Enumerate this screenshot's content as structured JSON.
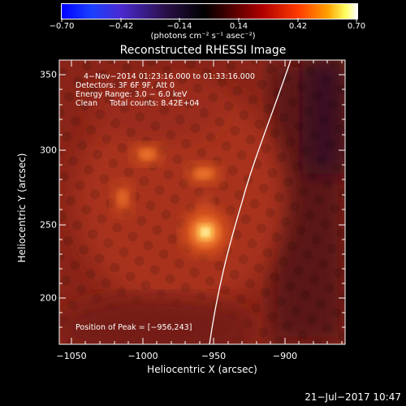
{
  "colorbar": {
    "ticks": [
      "−0.70",
      "−0.42",
      "−0.14",
      "0.14",
      "0.42",
      "0.70"
    ],
    "unit_label": "(photons cm⁻² s⁻¹ asec⁻²)"
  },
  "title": "Reconstructed RHESSI Image",
  "info": {
    "time_range": "4−Nov−2014 01:23:16.000 to 01:33:16.000",
    "detectors": "Detectors: 3F 6F 9F, Att 0",
    "energy_range": "Energy Range: 3.0 − 6.0 keV",
    "clean_total": "Clean     Total counts: 8.42E+04",
    "peak_position": "Position of Peak = [−956,243]"
  },
  "axes": {
    "xlabel": "Heliocentric X (arcsec)",
    "ylabel": "Heliocentric Y (arcsec)",
    "xticks": [
      "−1050",
      "−1000",
      "−950",
      "−900"
    ],
    "yticks": [
      "350",
      "300",
      "250",
      "200"
    ]
  },
  "timestamp": "21−Jul−2017 10:47",
  "colors": {
    "hot_dark": "#4a0a0a",
    "hot_mid": "#b82a1a",
    "hot_bright": "#ffd060",
    "limb": "#ffffff"
  }
}
